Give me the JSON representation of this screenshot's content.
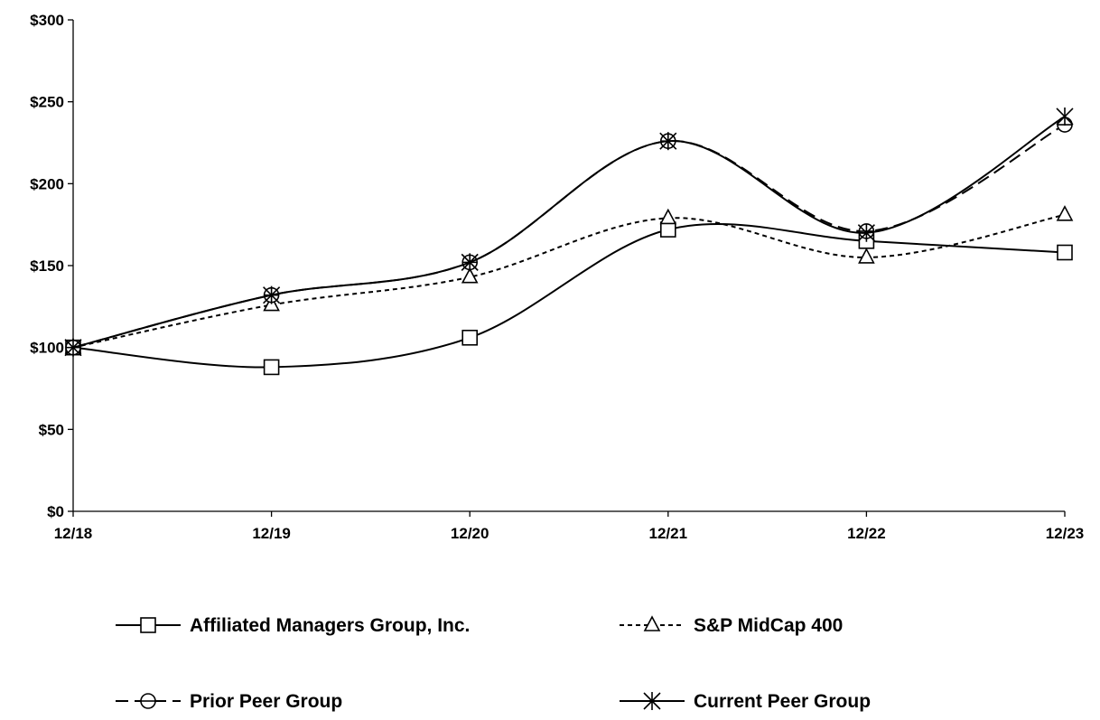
{
  "chart_data": {
    "type": "line",
    "title": "",
    "xlabel": "",
    "ylabel": "",
    "categories": [
      "12/18",
      "12/19",
      "12/20",
      "12/21",
      "12/22",
      "12/23"
    ],
    "ylim": [
      0,
      300
    ],
    "y_ticks": [
      0,
      50,
      100,
      150,
      200,
      250,
      300
    ],
    "y_tick_labels": [
      "$0",
      "$50",
      "$100",
      "$150",
      "$200",
      "$250",
      "$300"
    ],
    "grid": false,
    "legend_position": "bottom",
    "series": [
      {
        "name": "Affiliated Managers Group, Inc.",
        "values": [
          100,
          88,
          106,
          172,
          165,
          158
        ],
        "line_style": "solid",
        "marker": "square"
      },
      {
        "name": "S&P MidCap 400",
        "values": [
          100,
          126,
          143,
          179,
          155,
          181
        ],
        "line_style": "dotted",
        "marker": "triangle"
      },
      {
        "name": "Prior Peer Group",
        "values": [
          100,
          132,
          152,
          226,
          171,
          236
        ],
        "line_style": "dashed",
        "marker": "circle"
      },
      {
        "name": "Current Peer Group",
        "values": [
          100,
          132,
          152,
          226,
          170,
          241
        ],
        "line_style": "solid",
        "marker": "star"
      }
    ]
  }
}
